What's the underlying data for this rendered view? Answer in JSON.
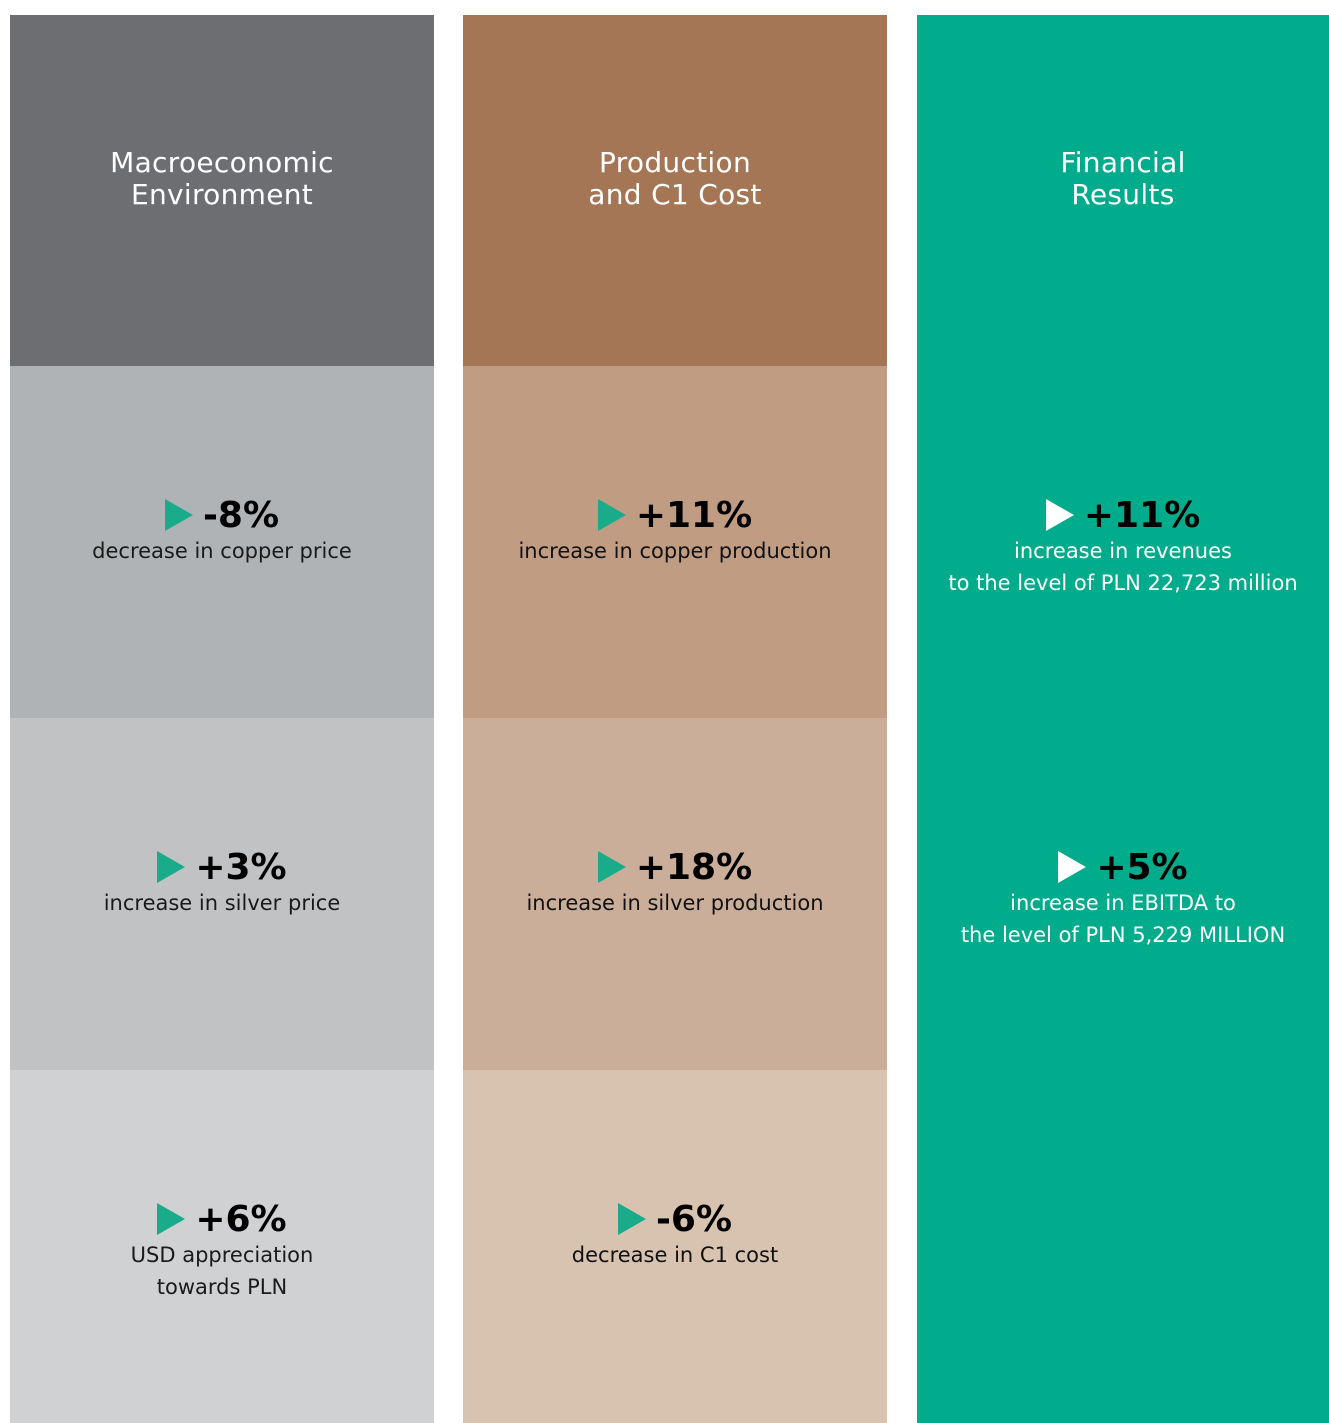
{
  "columns": [
    {
      "title": [
        "Macroeconomic",
        "Environment"
      ],
      "items": [
        {
          "value": "-8%",
          "description": [
            "decrease in copper price"
          ]
        },
        {
          "value": "+3%",
          "description": [
            "increase in silver price"
          ]
        },
        {
          "value": "+6%",
          "description": [
            "USD appreciation",
            "towards PLN"
          ]
        }
      ]
    },
    {
      "title": [
        "Production",
        "and C1 Cost"
      ],
      "items": [
        {
          "value": "+11%",
          "description": [
            "increase in copper production"
          ]
        },
        {
          "value": "+18%",
          "description": [
            "increase in silver production"
          ]
        },
        {
          "value": "-6%",
          "description": [
            "decrease in C1 cost"
          ]
        }
      ]
    },
    {
      "title": [
        "Financial",
        "Results"
      ],
      "items": [
        {
          "value": "+11%",
          "description": [
            "increase in revenues",
            "to the level of PLN  22,723 million"
          ]
        },
        {
          "value": "+5%",
          "description": [
            "increase in EBITDA to",
            "the level of PLN 5,229 MILLION"
          ]
        }
      ]
    }
  ]
}
